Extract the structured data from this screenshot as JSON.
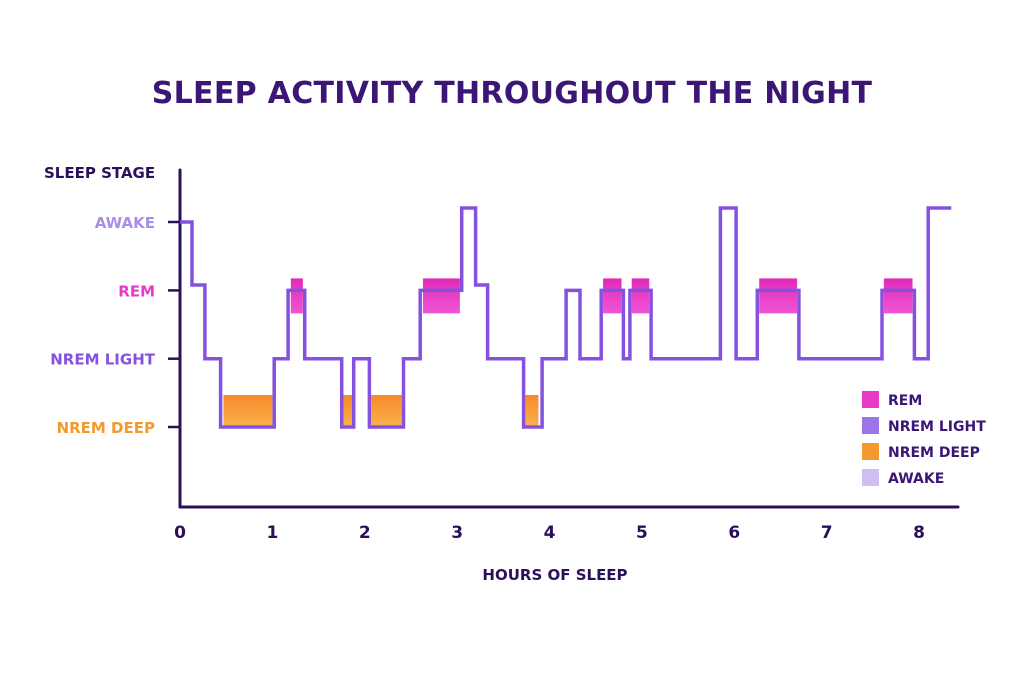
{
  "chart_data": {
    "type": "line",
    "title": "SLEEP ACTIVITY THROUGHOUT THE NIGHT",
    "ylabel": "SLEEP STAGE",
    "xlabel": "HOURS OF SLEEP",
    "x_ticks": [
      "0",
      "1",
      "2",
      "3",
      "4",
      "5",
      "6",
      "7",
      "8"
    ],
    "xlim": [
      0,
      8.4
    ],
    "stages": [
      {
        "key": "awake",
        "label": "AWAKE",
        "color": "#a98ee8",
        "level": 4
      },
      {
        "key": "rem",
        "label": "REM",
        "color": "#e83ac8",
        "level": 3
      },
      {
        "key": "light",
        "label": "NREM LIGHT",
        "color": "#8552e0",
        "level": 2
      },
      {
        "key": "deep",
        "label": "NREM DEEP",
        "color": "#f39a2e",
        "level": 1
      }
    ],
    "hypnogram": [
      {
        "x": 0.0,
        "y": 4.0
      },
      {
        "x": 0.13,
        "y": 4.0
      },
      {
        "x": 0.13,
        "y": 3.1
      },
      {
        "x": 0.27,
        "y": 3.1
      },
      {
        "x": 0.27,
        "y": 2.0
      },
      {
        "x": 0.44,
        "y": 2.0
      },
      {
        "x": 0.44,
        "y": 1.0
      },
      {
        "x": 1.02,
        "y": 1.0
      },
      {
        "x": 1.02,
        "y": 2.0
      },
      {
        "x": 1.17,
        "y": 2.0
      },
      {
        "x": 1.17,
        "y": 3.0
      },
      {
        "x": 1.35,
        "y": 3.0
      },
      {
        "x": 1.35,
        "y": 2.0
      },
      {
        "x": 1.75,
        "y": 2.0
      },
      {
        "x": 1.75,
        "y": 1.0
      },
      {
        "x": 1.88,
        "y": 1.0
      },
      {
        "x": 1.88,
        "y": 2.0
      },
      {
        "x": 2.05,
        "y": 2.0
      },
      {
        "x": 2.05,
        "y": 1.0
      },
      {
        "x": 2.42,
        "y": 1.0
      },
      {
        "x": 2.42,
        "y": 2.0
      },
      {
        "x": 2.6,
        "y": 2.0
      },
      {
        "x": 2.6,
        "y": 3.0
      },
      {
        "x": 3.05,
        "y": 3.0
      },
      {
        "x": 3.05,
        "y": 4.2
      },
      {
        "x": 3.2,
        "y": 4.2
      },
      {
        "x": 3.2,
        "y": 3.1
      },
      {
        "x": 3.33,
        "y": 3.1
      },
      {
        "x": 3.33,
        "y": 2.0
      },
      {
        "x": 3.72,
        "y": 2.0
      },
      {
        "x": 3.72,
        "y": 1.0
      },
      {
        "x": 3.92,
        "y": 1.0
      },
      {
        "x": 3.92,
        "y": 2.0
      },
      {
        "x": 4.18,
        "y": 2.0
      },
      {
        "x": 4.18,
        "y": 3.0
      },
      {
        "x": 4.33,
        "y": 3.0
      },
      {
        "x": 4.33,
        "y": 2.0
      },
      {
        "x": 4.56,
        "y": 2.0
      },
      {
        "x": 4.56,
        "y": 3.0
      },
      {
        "x": 4.8,
        "y": 3.0
      },
      {
        "x": 4.8,
        "y": 2.0
      },
      {
        "x": 4.87,
        "y": 2.0
      },
      {
        "x": 4.87,
        "y": 3.0
      },
      {
        "x": 5.1,
        "y": 3.0
      },
      {
        "x": 5.1,
        "y": 2.0
      },
      {
        "x": 5.85,
        "y": 2.0
      },
      {
        "x": 5.85,
        "y": 4.2
      },
      {
        "x": 6.02,
        "y": 4.2
      },
      {
        "x": 6.02,
        "y": 2.0
      },
      {
        "x": 6.25,
        "y": 2.0
      },
      {
        "x": 6.25,
        "y": 3.0
      },
      {
        "x": 6.7,
        "y": 3.0
      },
      {
        "x": 6.7,
        "y": 2.0
      },
      {
        "x": 7.6,
        "y": 2.0
      },
      {
        "x": 7.6,
        "y": 3.0
      },
      {
        "x": 7.95,
        "y": 3.0
      },
      {
        "x": 7.95,
        "y": 2.0
      },
      {
        "x": 8.1,
        "y": 2.0
      },
      {
        "x": 8.1,
        "y": 4.2
      },
      {
        "x": 8.35,
        "y": 4.2
      }
    ],
    "stage_blocks": [
      {
        "stage": "deep",
        "start": 0.47,
        "end": 1.0
      },
      {
        "stage": "rem",
        "start": 1.2,
        "end": 1.33
      },
      {
        "stage": "deep",
        "start": 1.76,
        "end": 1.87
      },
      {
        "stage": "deep",
        "start": 2.07,
        "end": 2.4
      },
      {
        "stage": "rem",
        "start": 2.63,
        "end": 3.03
      },
      {
        "stage": "deep",
        "start": 3.74,
        "end": 3.88
      },
      {
        "stage": "rem",
        "start": 4.58,
        "end": 4.78
      },
      {
        "stage": "rem",
        "start": 4.89,
        "end": 5.08
      },
      {
        "stage": "rem",
        "start": 6.27,
        "end": 6.68
      },
      {
        "stage": "rem",
        "start": 7.62,
        "end": 7.93
      }
    ],
    "legend": {
      "position": "bottom-right",
      "items": [
        {
          "label": "REM",
          "color": "#e83ac8"
        },
        {
          "label": "NREM LIGHT",
          "color": "#9b74e6"
        },
        {
          "label": "NREM DEEP",
          "color": "#f39a2e"
        },
        {
          "label": "AWAKE",
          "color": "#cdbff2"
        }
      ]
    },
    "colors": {
      "line": "#8552e0",
      "axis": "#2a0f5a",
      "title": "#3b1675",
      "ylabel": "#2a0f5a"
    }
  }
}
